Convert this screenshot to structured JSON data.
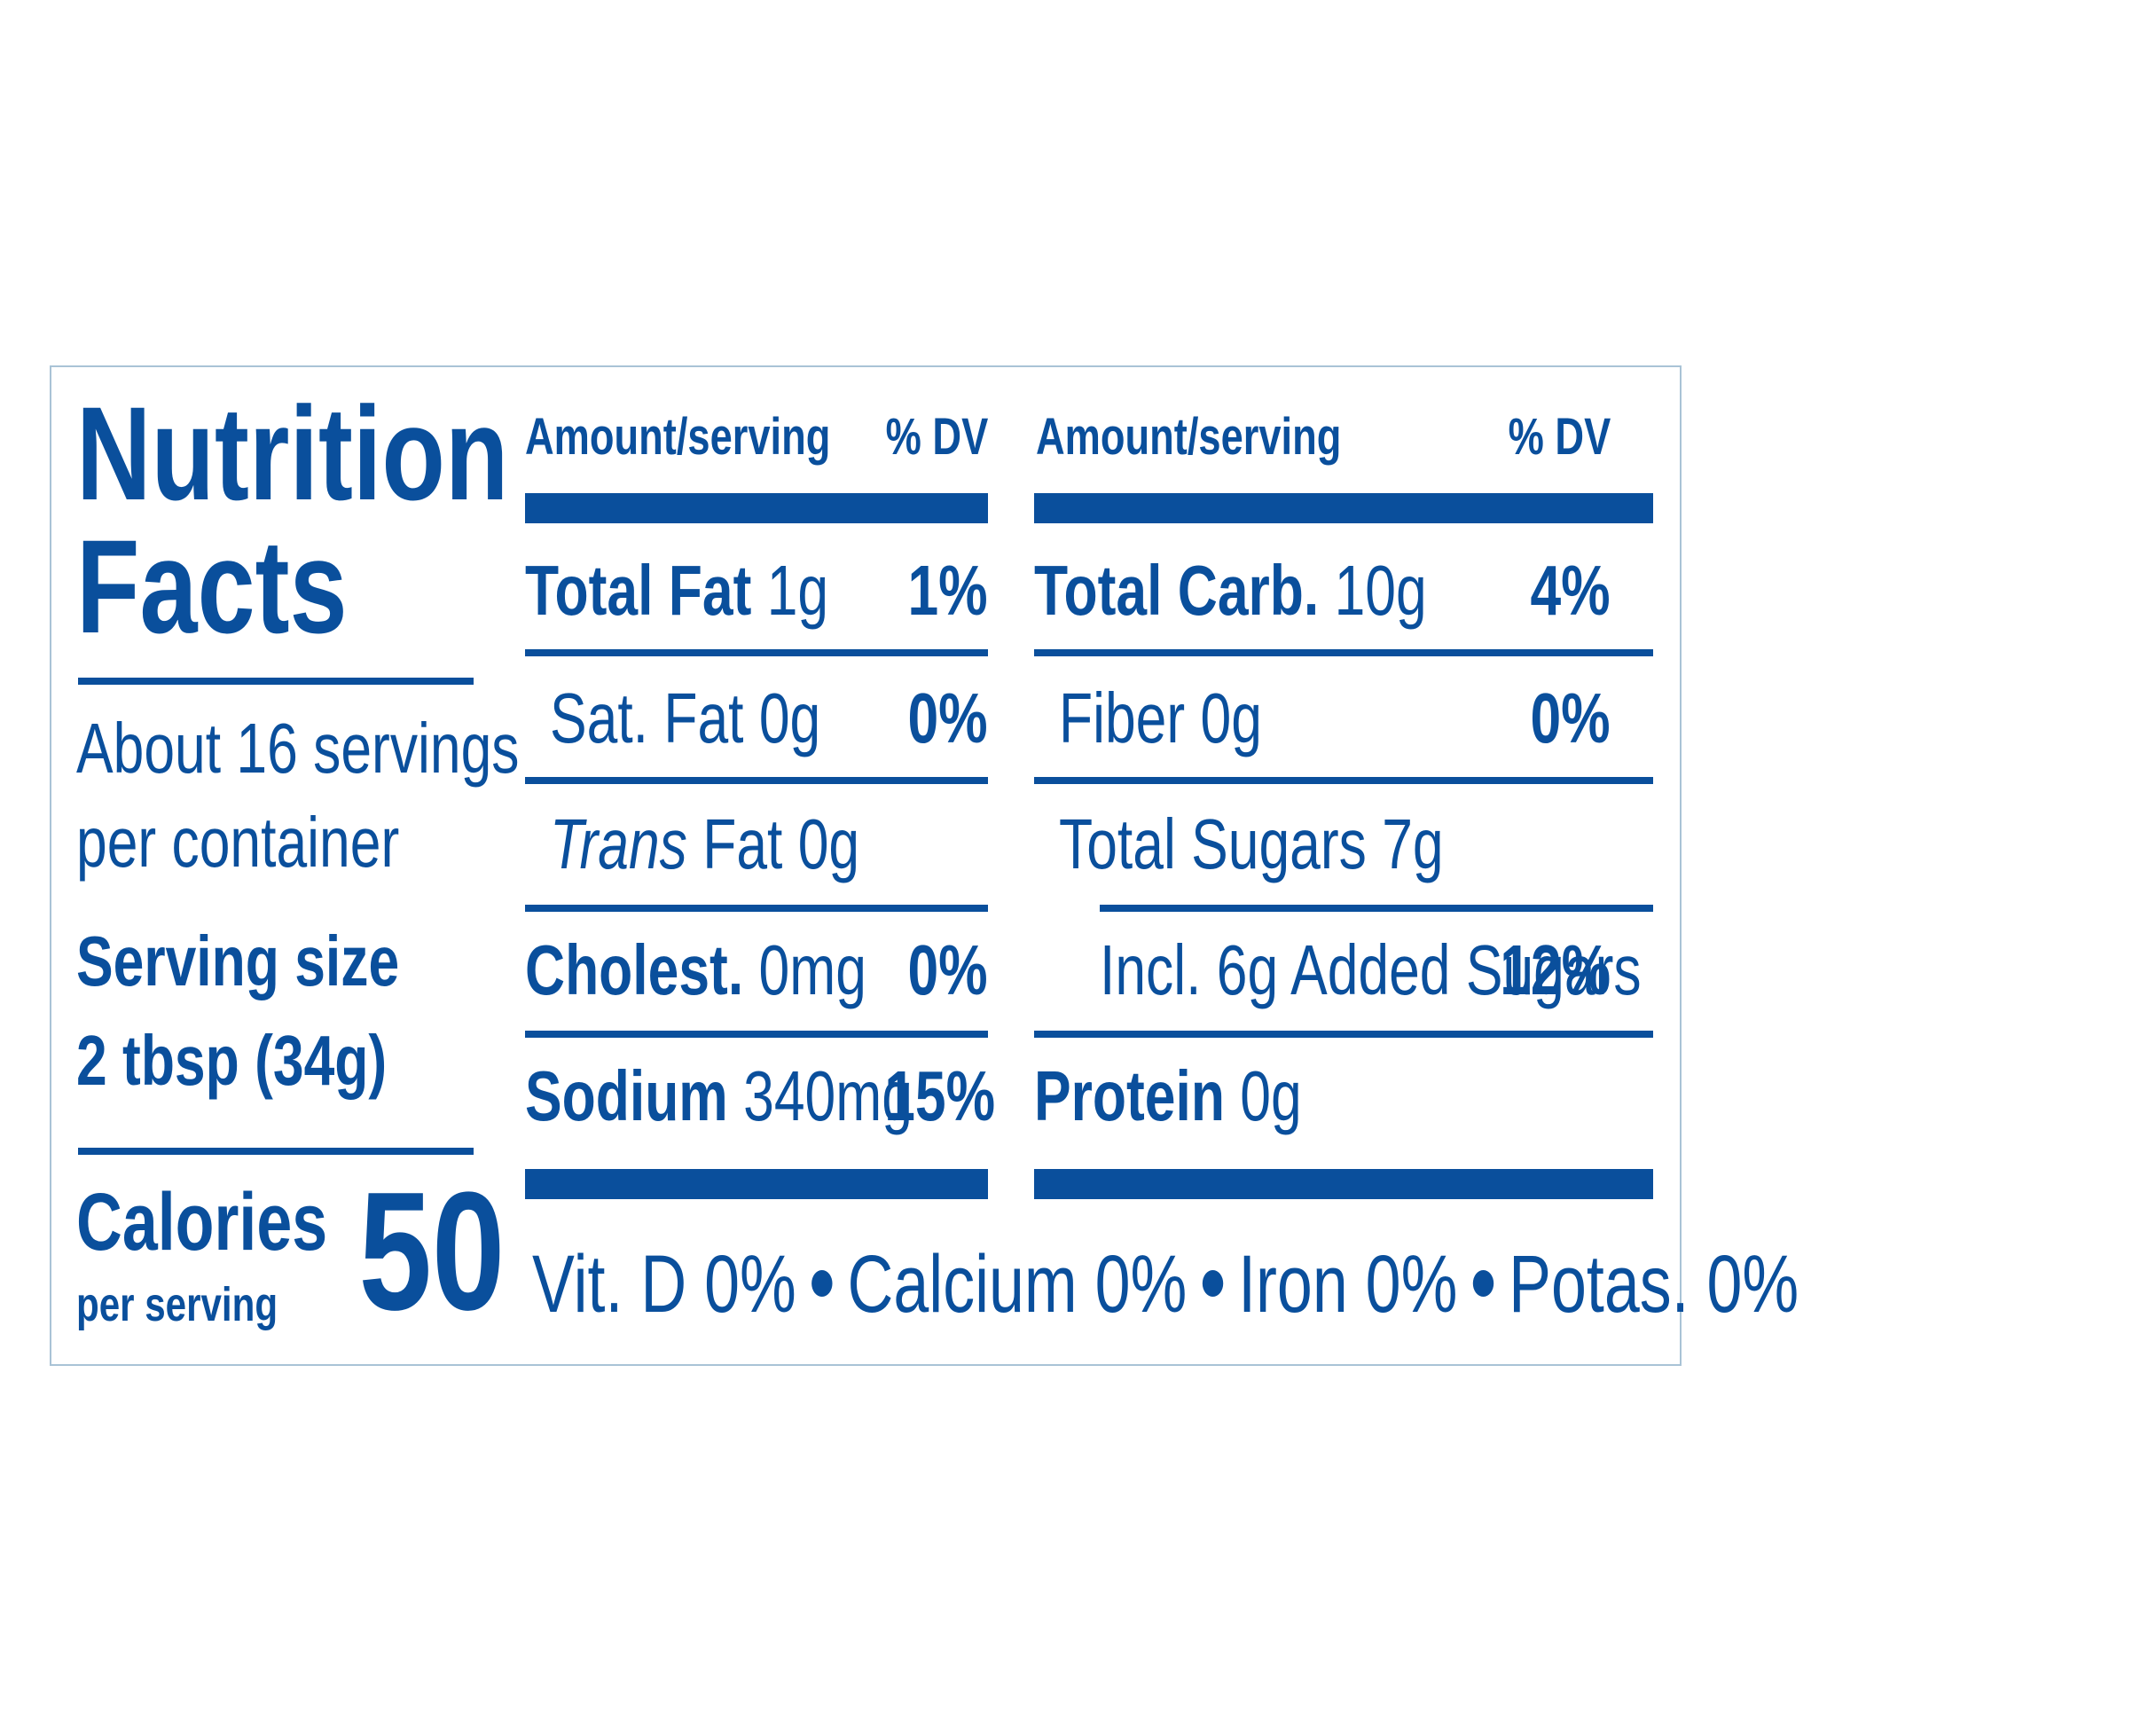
{
  "colors": {
    "ink": "#0a4f9c",
    "border": "#a9c3d6",
    "background": "#ffffff"
  },
  "left": {
    "title_line1": "Nutrition",
    "title_line2": "Facts",
    "servings_line1": "About 16 servings",
    "servings_line2": "per container",
    "serving_size_label": "Serving size",
    "serving_size_value": "2 tbsp (34g)",
    "calories_label": "Calories",
    "calories_sub": "per serving",
    "calories_value": "50"
  },
  "col1": {
    "header_amount": "Amount/serving",
    "header_dv": "% DV",
    "rows": [
      {
        "name": "Total Fat",
        "amount": "1g",
        "dv": "1%"
      },
      {
        "name": "Sat. Fat",
        "amount": "0g",
        "dv": "0%"
      },
      {
        "name_italic": "Trans",
        "name": "Fat",
        "amount": "0g",
        "dv": ""
      },
      {
        "name": "Cholest.",
        "amount": "0mg",
        "dv": "0%"
      },
      {
        "name": "Sodium",
        "amount": "340mg",
        "dv": "15%"
      }
    ]
  },
  "col2": {
    "header_amount": "Amount/serving",
    "header_dv": "% DV",
    "rows": [
      {
        "name": "Total Carb.",
        "amount": "10g",
        "dv": "4%"
      },
      {
        "name": "Fiber",
        "amount": "0g",
        "dv": "0%"
      },
      {
        "name": "Total Sugars",
        "amount": "7g",
        "dv": ""
      },
      {
        "name": "Incl. 6g Added Sugars",
        "amount": "",
        "dv": "12%"
      },
      {
        "name": "Protein",
        "amount": "0g",
        "dv": ""
      }
    ]
  },
  "footer": {
    "vit_d": "Vit. D 0%",
    "calcium": "Calcium 0%",
    "iron": "Iron 0%",
    "potassium": "Potas. 0%"
  }
}
